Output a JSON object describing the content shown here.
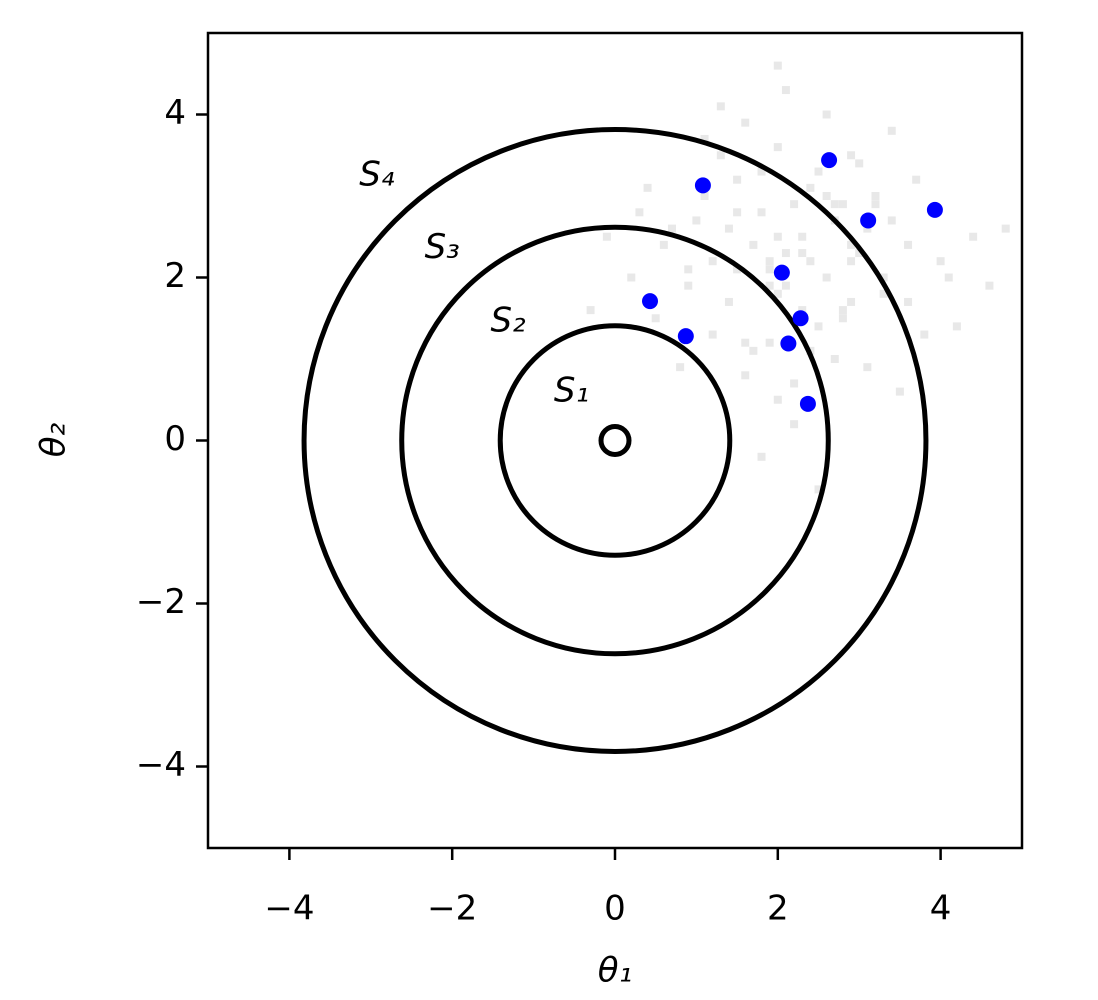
{
  "chart_data": {
    "type": "scatter",
    "x_label": "θ₁",
    "y_label": "θ₂",
    "xlim": [
      -5,
      5
    ],
    "ylim": [
      -5,
      5
    ],
    "xticks": [
      {
        "value": -4,
        "label": "−4"
      },
      {
        "value": -2,
        "label": "−2"
      },
      0,
      2,
      4
    ],
    "yticks": [
      {
        "value": -4,
        "label": "−4"
      },
      {
        "value": -2,
        "label": "−2"
      },
      0,
      2,
      4
    ],
    "circles": [
      1.41,
      2.62,
      3.82
    ],
    "region_labels": [
      "S₁",
      "S₂",
      "S₃",
      "S₄"
    ],
    "center": {
      "x": 0,
      "y": 0
    },
    "series": [
      {
        "color": "#808080",
        "x": [
          2.1,
          1.5,
          2.8,
          3.2,
          0.9,
          1.8,
          2.4,
          3.6,
          1.2,
          2.0,
          2.7,
          0.5,
          1.9,
          3.0,
          2.3,
          1.6,
          4.1,
          2.9,
          1.1,
          2.5,
          3.4,
          0.7,
          2.2,
          1.4,
          3.8,
          2.6,
          1.7,
          0.2,
          2.0,
          3.1,
          1.3,
          2.8,
          4.4,
          1.9,
          2.4,
          0.8,
          3.3,
          2.1,
          1.5,
          2.9,
          3.7,
          1.0,
          2.3,
          1.8,
          4.0,
          2.6,
          0.4,
          3.5,
          2.0,
          1.6,
          2.7,
          3.0,
          1.2,
          2.5,
          4.6,
          1.9,
          2.2,
          0.6,
          3.2,
          2.8,
          1.4,
          2.0,
          3.9,
          1.7,
          2.4,
          -0.3,
          3.4,
          2.1,
          1.1,
          2.9,
          4.2,
          1.8,
          2.6,
          0.9,
          3.1,
          2.3,
          1.5,
          4.8,
          2.0,
          2.7,
          -0.1,
          3.6,
          1.3,
          2.2,
          2.9,
          1.6,
          3.3,
          0.3,
          2.5,
          1.9
        ],
        "y": [
          2.3,
          2.8,
          1.6,
          2.9,
          1.9,
          3.3,
          1.1,
          2.4,
          2.2,
          3.6,
          2.7,
          1.5,
          1.9,
          3.4,
          2.5,
          0.8,
          2.0,
          2.2,
          3.0,
          1.4,
          3.8,
          2.6,
          2.9,
          1.7,
          1.3,
          4.0,
          2.4,
          2.0,
          0.5,
          2.6,
          3.5,
          2.9,
          2.5,
          1.2,
          3.1,
          0.9,
          1.8,
          4.3,
          2.1,
          1.7,
          3.2,
          2.7,
          1.6,
          2.8,
          2.2,
          2.0,
          3.1,
          0.6,
          2.5,
          3.9,
          1.0,
          2.3,
          1.3,
          3.3,
          1.9,
          2.1,
          0.2,
          2.4,
          3.0,
          1.5,
          2.6,
          4.6,
          2.8,
          1.1,
          2.2,
          1.6,
          2.7,
          1.9,
          3.7,
          2.4,
          1.4,
          -0.2,
          3.0,
          2.1,
          0.9,
          2.3,
          3.2,
          2.6,
          1.8,
          2.9,
          2.5,
          1.7,
          4.1,
          0.7,
          3.5,
          1.2,
          2.0,
          2.8,
          -0.6,
          2.2
        ]
      },
      {
        "color": "#0000ff",
        "x": [
          0.43,
          0.87,
          1.08,
          2.05,
          2.28,
          2.13,
          2.37,
          2.63,
          3.11,
          3.93
        ],
        "y": [
          1.71,
          1.28,
          3.13,
          2.06,
          1.5,
          1.19,
          0.45,
          3.44,
          2.7,
          2.83
        ]
      }
    ]
  }
}
